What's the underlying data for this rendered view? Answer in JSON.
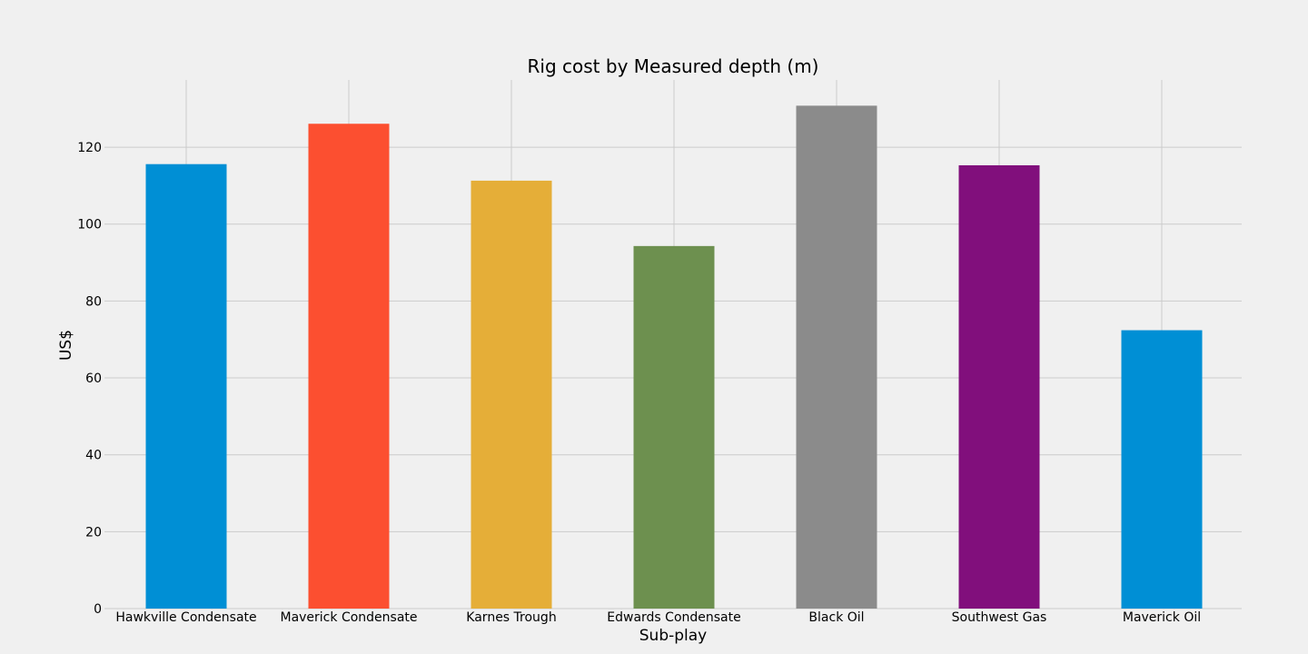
{
  "chart_data": {
    "type": "bar",
    "title": "Rig cost by Measured depth (m)",
    "xlabel": "Sub-play",
    "ylabel": "US$",
    "categories": [
      "Hawkville Condensate",
      "Maverick Condensate",
      "Karnes Trough",
      "Edwards Condensate",
      "Black Oil",
      "Southwest Gas",
      "Maverick Oil"
    ],
    "values": [
      115.6,
      126.1,
      111.3,
      94.3,
      130.8,
      115.3,
      72.4
    ],
    "colors": [
      "#008fd5",
      "#fc4f30",
      "#e5ae38",
      "#6d904f",
      "#8b8b8b",
      "#810f7c",
      "#008fd5"
    ],
    "ylim": [
      0,
      137.5
    ],
    "yticks": [
      0,
      20,
      40,
      60,
      80,
      100,
      120
    ],
    "grid": true,
    "legend": "none"
  }
}
